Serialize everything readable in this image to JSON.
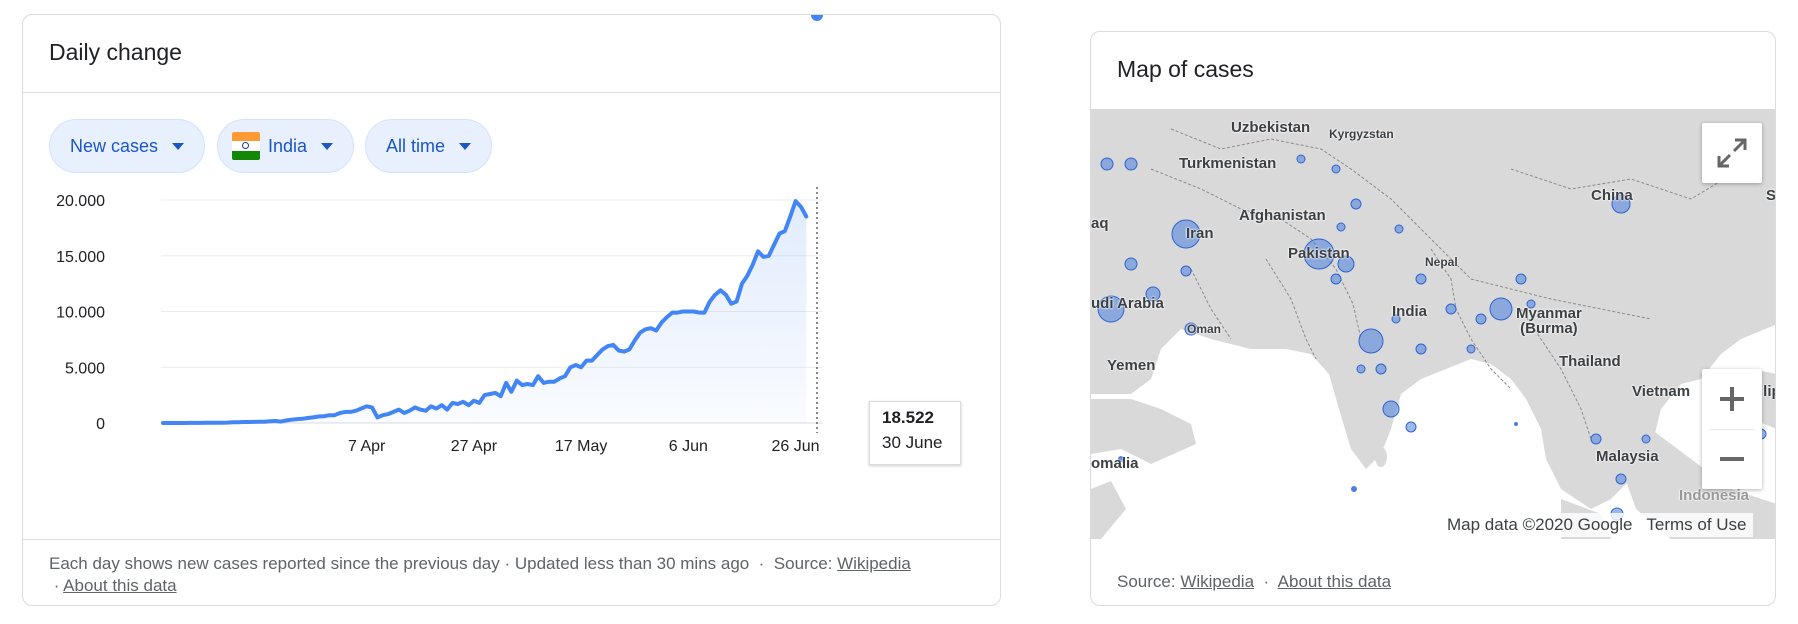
{
  "chart_card": {
    "title": "Daily change",
    "filters": {
      "metric": "New cases",
      "country": "India",
      "range": "All time"
    },
    "tooltip": {
      "value": "18.522",
      "date": "30 June"
    },
    "footer": {
      "text": "Each day shows new cases reported since the previous day · Updated less than 30 mins ago",
      "source_label": "Source:",
      "source_link": "Wikipedia",
      "about_link": "About this data"
    }
  },
  "chart_data": {
    "type": "area",
    "y_ticks": [
      "0",
      "5.000",
      "10.000",
      "15.000",
      "20.000"
    ],
    "y_tick_values": [
      0,
      5000,
      10000,
      15000,
      20000
    ],
    "x_ticks": [
      "7 Apr",
      "27 Apr",
      "17 May",
      "6 Jun",
      "26 Jun"
    ],
    "x_tick_days": [
      38,
      58,
      78,
      98,
      118
    ],
    "ylim": [
      0,
      20000
    ],
    "xlim": [
      0,
      122
    ],
    "grid": true,
    "highlight_day": 122,
    "series": [
      {
        "values": [
          0,
          2,
          0,
          3,
          2,
          5,
          8,
          10,
          15,
          20,
          22,
          30,
          40,
          60,
          70,
          90,
          90,
          100,
          110,
          120,
          150,
          180,
          130,
          230,
          300,
          350,
          380,
          450,
          500,
          580,
          600,
          700,
          700,
          900,
          1000,
          1000,
          1100,
          1300,
          1500,
          1400,
          500,
          700,
          800,
          1000,
          1200,
          900,
          1100,
          1400,
          1200,
          1100,
          1500,
          1300,
          1600,
          1200,
          1800,
          1700,
          1900,
          1600,
          2000,
          1800,
          2500,
          2600,
          2700,
          2400,
          3600,
          2800,
          3800,
          3400,
          3500,
          3400,
          4200,
          3600,
          3700,
          3700,
          4000,
          4200,
          5000,
          5200,
          5000,
          5600,
          5600,
          6100,
          6600,
          6900,
          7000,
          6500,
          6400,
          6600,
          7400,
          8100,
          8400,
          8500,
          8300,
          9000,
          9500,
          9900,
          9900,
          10000,
          10000,
          10000,
          9900,
          9900,
          10900,
          11500,
          11900,
          11500,
          10700,
          10900,
          12500,
          13200,
          14200,
          15400,
          14900,
          15000,
          16000,
          17000,
          17200,
          18500,
          19900,
          19400,
          18522
        ],
        "color": "#4285f4"
      }
    ]
  },
  "map_card": {
    "title": "Map of cases",
    "labels": {
      "uzbekistan": "Uzbekistan",
      "kyrgyzstan": "Kyrgyzstan",
      "turkmenistan": "Turkmenistan",
      "afghanistan": "Afghanistan",
      "iran": "Iran",
      "iraq": "aq",
      "pakistan": "Pakistan",
      "nepal": "Nepal",
      "china": "China",
      "india": "India",
      "saudi": "udi Arabia",
      "oman": "Oman",
      "myanmar": "Myanmar\n(Burma)",
      "thailand": "Thailand",
      "yemen": "Yemen",
      "vietnam": "Vietnam",
      "philippines": "ilip",
      "somalia": "omalia",
      "malaysia": "Malaysia",
      "indonesia": "Indonesia",
      "s_edge": "S"
    },
    "attribution": {
      "data": "Map data ©2020 Google",
      "terms": "Terms of Use"
    },
    "footer": {
      "source_label": "Source:",
      "source_link": "Wikipedia",
      "about_link": "About this data"
    }
  }
}
